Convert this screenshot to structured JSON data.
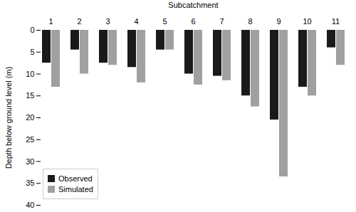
{
  "chart_data": {
    "type": "bar",
    "xlabel": "Subcatchment",
    "ylabel": "Depth below ground level (m)",
    "categories": [
      "1",
      "2",
      "3",
      "4",
      "5",
      "6",
      "7",
      "8",
      "9",
      "10",
      "11"
    ],
    "series": [
      {
        "name": "Observed",
        "color": "#1a1a1a",
        "values": [
          7.5,
          4.5,
          7.5,
          8.5,
          4.5,
          10.0,
          10.5,
          15.0,
          20.5,
          13.0,
          4.0
        ]
      },
      {
        "name": "Simulated",
        "color": "#a0a0a0",
        "values": [
          13.0,
          10.0,
          8.0,
          12.0,
          4.5,
          12.5,
          11.5,
          17.5,
          33.5,
          15.0,
          8.0
        ]
      }
    ],
    "ylim": [
      40,
      0
    ],
    "yticks": [
      0,
      5,
      10,
      15,
      20,
      25,
      30,
      35,
      40
    ],
    "grid": false,
    "legend": "lower left"
  }
}
